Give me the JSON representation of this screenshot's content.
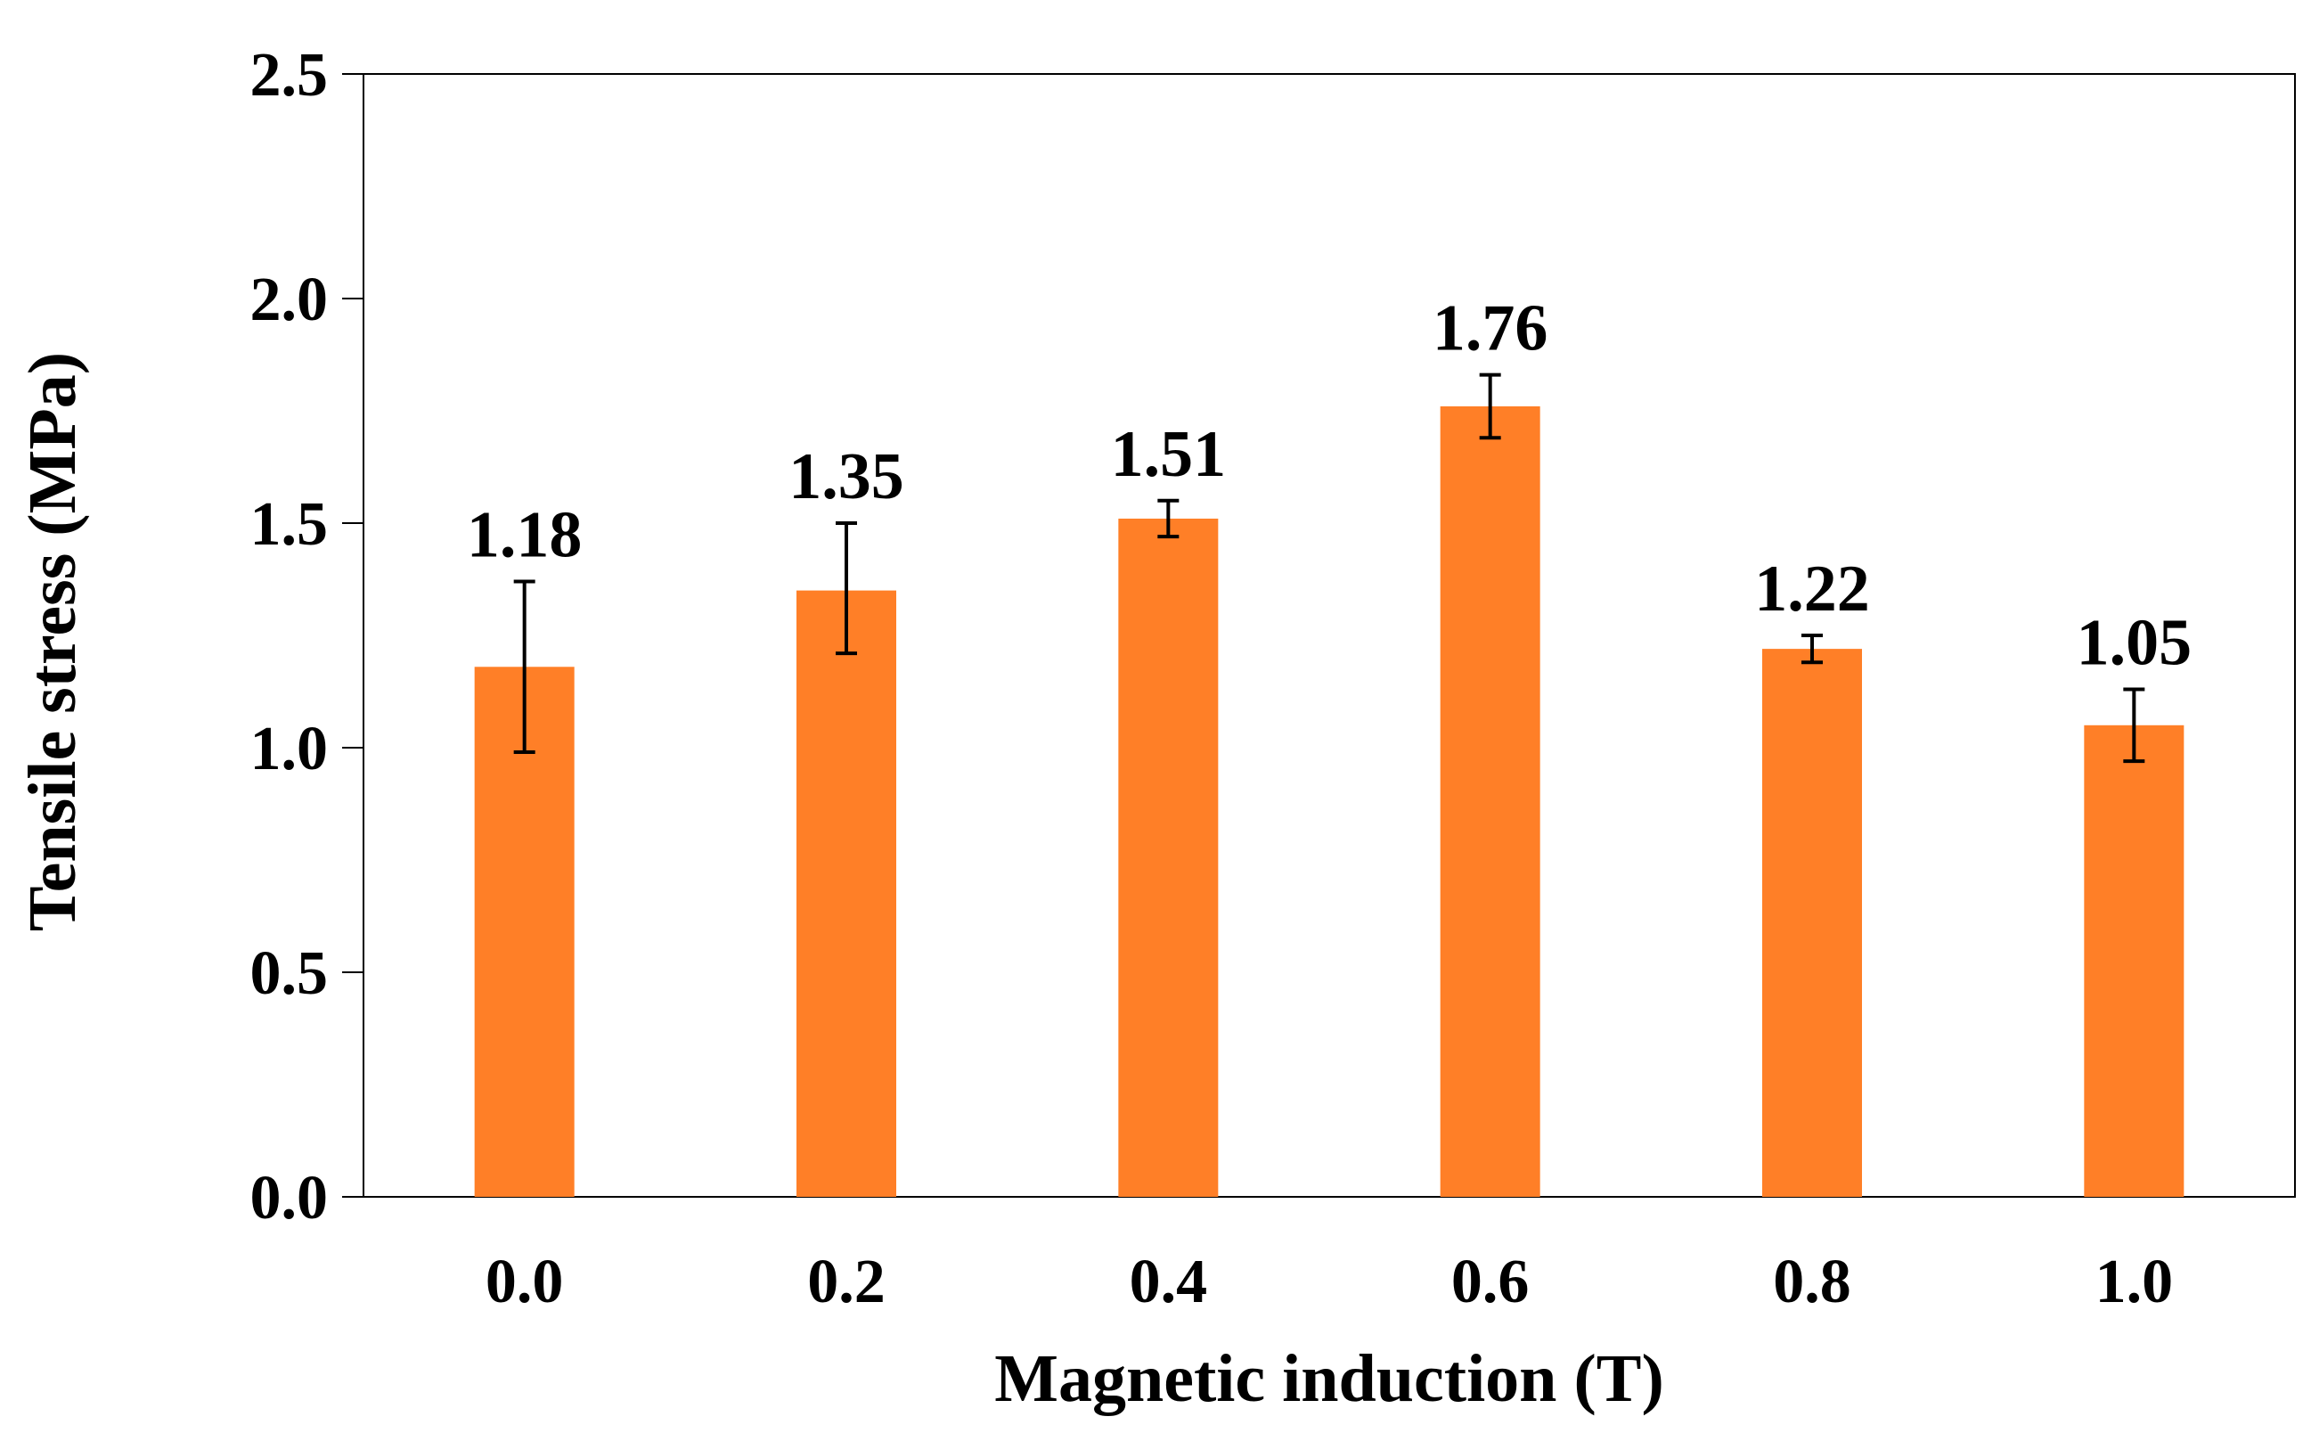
{
  "chart_data": {
    "type": "bar",
    "title": "",
    "xlabel": "Magnetic induction (T)",
    "ylabel": "Tensile stress  (MPa)",
    "categories": [
      "0.0",
      "0.2",
      "0.4",
      "0.6",
      "0.8",
      "1.0"
    ],
    "values": [
      1.18,
      1.35,
      1.51,
      1.76,
      1.22,
      1.05
    ],
    "data_labels": [
      "1.18",
      "1.35",
      "1.51",
      "1.76",
      "1.22",
      "1.05"
    ],
    "error_bars": [
      {
        "low": 0.99,
        "high": 1.37
      },
      {
        "low": 1.21,
        "high": 1.5
      },
      {
        "low": 1.47,
        "high": 1.55
      },
      {
        "low": 1.69,
        "high": 1.83
      },
      {
        "low": 1.19,
        "high": 1.25
      },
      {
        "low": 0.97,
        "high": 1.13
      }
    ],
    "ylim": [
      0,
      2.5
    ],
    "yticks": [
      "0.0",
      "0.5",
      "1.0",
      "1.5",
      "2.0",
      "2.5"
    ],
    "grid": false,
    "legend": "none",
    "colors": {
      "bar": "#FF7F27",
      "axis": "#000000",
      "error_bar": "#000000"
    }
  }
}
